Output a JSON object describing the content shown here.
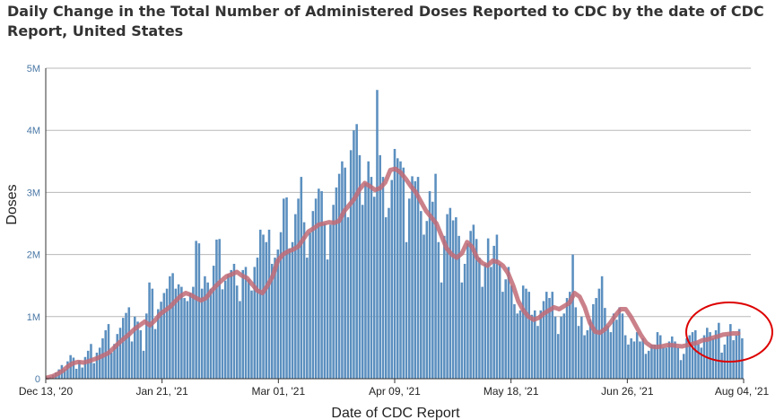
{
  "chart_data": {
    "type": "bar",
    "title": "Daily Change in the Total Number of Administered Doses Reported to CDC by the date of CDC Report, United States",
    "xlabel": "Date of CDC Report",
    "ylabel": "Doses",
    "y_ticks": [
      "0",
      "1M",
      "2M",
      "3M",
      "4M",
      "5M"
    ],
    "ylim": [
      0,
      5000000
    ],
    "x_ticks": [
      "Dec 13, '20",
      "Jan 21, '21",
      "Mar 01, '21",
      "Apr 09, '21",
      "May 18, '21",
      "Jun 26, '21",
      "Aug 04, '21"
    ],
    "x_range": [
      "2020-12-13",
      "2021-08-04"
    ],
    "grid": "horizontal",
    "colors": {
      "bars": "#5b8fbf",
      "average_line": "#c26b75",
      "highlight_circle": "#dd0000"
    },
    "series": [
      {
        "type": "bar",
        "values": [
          20000,
          30000,
          60000,
          100000,
          150000,
          220000,
          150000,
          280000,
          380000,
          340000,
          160000,
          290000,
          180000,
          350000,
          450000,
          560000,
          250000,
          420000,
          500000,
          650000,
          780000,
          880000,
          420000,
          560000,
          720000,
          820000,
          980000,
          1060000,
          1150000,
          600000,
          1000000,
          920000,
          780000,
          450000,
          1050000,
          1550000,
          1450000,
          800000,
          1120000,
          1240000,
          1380000,
          1450000,
          1650000,
          1700000,
          1450000,
          1520000,
          1480000,
          1300000,
          1250000,
          1380000,
          1480000,
          2220000,
          2180000,
          1450000,
          1650000,
          1550000,
          1450000,
          1820000,
          2240000,
          2250000,
          1440000,
          1580000,
          1680000,
          1750000,
          1850000,
          1500000,
          1250000,
          1750000,
          1800000,
          1600000,
          1420000,
          1800000,
          1950000,
          2400000,
          2320000,
          2200000,
          2400000,
          1850000,
          1950000,
          2080000,
          2360000,
          2900000,
          2920000,
          2100000,
          2200000,
          2650000,
          2900000,
          3250000,
          2520000,
          1950000,
          2350000,
          2700000,
          2900000,
          3060000,
          3020000,
          2500000,
          1920000,
          2480000,
          2800000,
          3080000,
          3300000,
          3500000,
          3400000,
          2600000,
          3680000,
          4000000,
          4100000,
          3600000,
          2800000,
          3150000,
          3500000,
          3250000,
          2930000,
          4650000,
          3600000,
          3250000,
          2600000,
          2750000,
          3200000,
          3700000,
          3550000,
          3500000,
          3400000,
          2200000,
          2900000,
          3260000,
          3180000,
          3250000,
          2700000,
          2320000,
          2540000,
          3020000,
          2850000,
          3300000,
          2200000,
          1550000,
          2300000,
          2650000,
          2750000,
          2550000,
          2600000,
          2300000,
          1550000,
          1850000,
          2180000,
          2380000,
          2480000,
          2250000,
          1950000,
          1480000,
          1850000,
          2260000,
          1800000,
          2140000,
          2320000,
          1850000,
          1400000,
          1600000,
          1800000,
          1500000,
          1200000,
          1050000,
          1100000,
          1500000,
          1450000,
          1400000,
          1030000,
          1100000,
          850000,
          1100000,
          1250000,
          1400000,
          1300000,
          1400000,
          1000000,
          720000,
          1000000,
          1050000,
          1300000,
          1400000,
          2000000,
          1150000,
          850000,
          1000000,
          700000,
          780000,
          950000,
          1200000,
          1300000,
          1450000,
          1650000,
          1140000,
          850000,
          750000,
          1050000,
          950000,
          1150000,
          1050000,
          700000,
          550000,
          650000,
          600000,
          750000,
          600000,
          650000,
          400000,
          450000,
          550000,
          550000,
          750000,
          700000,
          500000,
          500000,
          600000,
          680000,
          600000,
          500000,
          300000,
          400000,
          650000,
          700000,
          750000,
          780000,
          560000,
          500000,
          700000,
          820000,
          750000,
          650000,
          780000,
          900000,
          420000,
          550000,
          700000,
          880000,
          620000,
          700000,
          800000,
          650000
        ]
      },
      {
        "type": "line",
        "kind": "moving-average",
        "values": [
          20000,
          40000,
          80000,
          130000,
          200000,
          250000,
          270000,
          260000,
          280000,
          310000,
          340000,
          380000,
          420000,
          500000,
          580000,
          650000,
          720000,
          800000,
          860000,
          920000,
          860000,
          940000,
          1040000,
          1100000,
          1160000,
          1250000,
          1330000,
          1380000,
          1350000,
          1300000,
          1260000,
          1300000,
          1410000,
          1500000,
          1580000,
          1650000,
          1680000,
          1720000,
          1660000,
          1620000,
          1520000,
          1420000,
          1380000,
          1500000,
          1650000,
          1900000,
          2000000,
          2050000,
          2080000,
          2130000,
          2250000,
          2370000,
          2420000,
          2480000,
          2500000,
          2520000,
          2510000,
          2540000,
          2700000,
          2800000,
          2900000,
          3050000,
          3150000,
          3100000,
          3040000,
          3070000,
          3160000,
          3360000,
          3380000,
          3320000,
          3220000,
          3100000,
          3000000,
          2850000,
          2700000,
          2600000,
          2500000,
          2300000,
          2100000,
          2000000,
          1950000,
          2020000,
          2200000,
          2120000,
          1940000,
          1860000,
          1820000,
          1900000,
          1880000,
          1820000,
          1700000,
          1500000,
          1250000,
          1100000,
          1000000,
          950000,
          980000,
          1050000,
          1100000,
          1150000,
          1120000,
          1170000,
          1220000,
          1380000,
          1320000,
          1150000,
          900000,
          760000,
          740000,
          800000,
          900000,
          1020000,
          1120000,
          1120000,
          1000000,
          850000,
          700000,
          580000,
          520000,
          510000,
          520000,
          540000,
          540000,
          530000,
          520000,
          540000,
          560000,
          580000,
          620000,
          630000,
          660000,
          680000,
          710000,
          720000,
          730000,
          730000
        ]
      }
    ]
  }
}
